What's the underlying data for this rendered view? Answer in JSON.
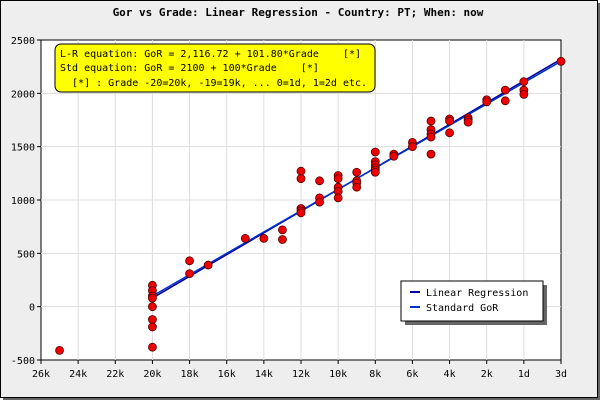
{
  "chart_data": {
    "type": "scatter",
    "title": "Gor vs Grade: Linear Regression - Country: PT; When: now",
    "xlabel": "",
    "ylabel": "",
    "x_tick_labels": [
      "26k",
      "24k",
      "22k",
      "20k",
      "18k",
      "16k",
      "14k",
      "12k",
      "10k",
      "8k",
      "6k",
      "4k",
      "2k",
      "1d",
      "3d"
    ],
    "xlim": [
      -26,
      2
    ],
    "ylim": [
      -500,
      2500
    ],
    "y_ticks": [
      -500,
      0,
      500,
      1000,
      1500,
      2000,
      2500
    ],
    "grid": true,
    "annotations": [
      "L-R equation: GoR = 2,116.72 + 101.80*Grade    [*]",
      "Std equation: GoR = 2100 + 100*Grade    [*]",
      "  [*] : Grade -20=20k, -19=19k, ... 0=1d, 1=2d etc."
    ],
    "legend_position": "bottom-right",
    "legend": [
      "Linear Regression",
      "Standard GoR"
    ],
    "series": [
      {
        "name": "Linear Regression",
        "type": "line",
        "color": "#000099",
        "x": [
          -20,
          2
        ],
        "y": [
          80.72,
          2320.32
        ]
      },
      {
        "name": "Standard GoR",
        "type": "line",
        "color": "#0033cc",
        "x": [
          -20,
          2
        ],
        "y": [
          100,
          2300
        ]
      },
      {
        "name": "",
        "type": "scatter",
        "color": "#ee0000",
        "points": [
          [
            -25,
            -410
          ],
          [
            -20,
            200
          ],
          [
            -20,
            150
          ],
          [
            -20,
            100
          ],
          [
            -20,
            80
          ],
          [
            -20,
            0
          ],
          [
            -20,
            -120
          ],
          [
            -20,
            -190
          ],
          [
            -20,
            -380
          ],
          [
            -18,
            430
          ],
          [
            -18,
            310
          ],
          [
            -17,
            390
          ],
          [
            -15,
            640
          ],
          [
            -14,
            640
          ],
          [
            -13,
            720
          ],
          [
            -13,
            630
          ],
          [
            -12,
            1270
          ],
          [
            -12,
            1200
          ],
          [
            -12,
            920
          ],
          [
            -12,
            900
          ],
          [
            -12,
            880
          ],
          [
            -11,
            1180
          ],
          [
            -11,
            1020
          ],
          [
            -11,
            980
          ],
          [
            -10,
            1230
          ],
          [
            -10,
            1200
          ],
          [
            -10,
            1120
          ],
          [
            -10,
            1080
          ],
          [
            -10,
            1020
          ],
          [
            -9,
            1260
          ],
          [
            -9,
            1180
          ],
          [
            -9,
            1160
          ],
          [
            -9,
            1120
          ],
          [
            -8,
            1450
          ],
          [
            -8,
            1360
          ],
          [
            -8,
            1330
          ],
          [
            -8,
            1300
          ],
          [
            -8,
            1280
          ],
          [
            -8,
            1260
          ],
          [
            -7,
            1430
          ],
          [
            -7,
            1410
          ],
          [
            -6,
            1540
          ],
          [
            -6,
            1500
          ],
          [
            -5,
            1740
          ],
          [
            -5,
            1660
          ],
          [
            -5,
            1620
          ],
          [
            -5,
            1590
          ],
          [
            -5,
            1430
          ],
          [
            -4,
            1760
          ],
          [
            -4,
            1740
          ],
          [
            -4,
            1630
          ],
          [
            -3,
            1770
          ],
          [
            -3,
            1750
          ],
          [
            -3,
            1730
          ],
          [
            -2,
            1940
          ],
          [
            -2,
            1920
          ],
          [
            -1,
            2030
          ],
          [
            -1,
            1930
          ],
          [
            0,
            2110
          ],
          [
            0,
            2030
          ],
          [
            0,
            1990
          ],
          [
            2,
            2300
          ]
        ]
      }
    ]
  }
}
